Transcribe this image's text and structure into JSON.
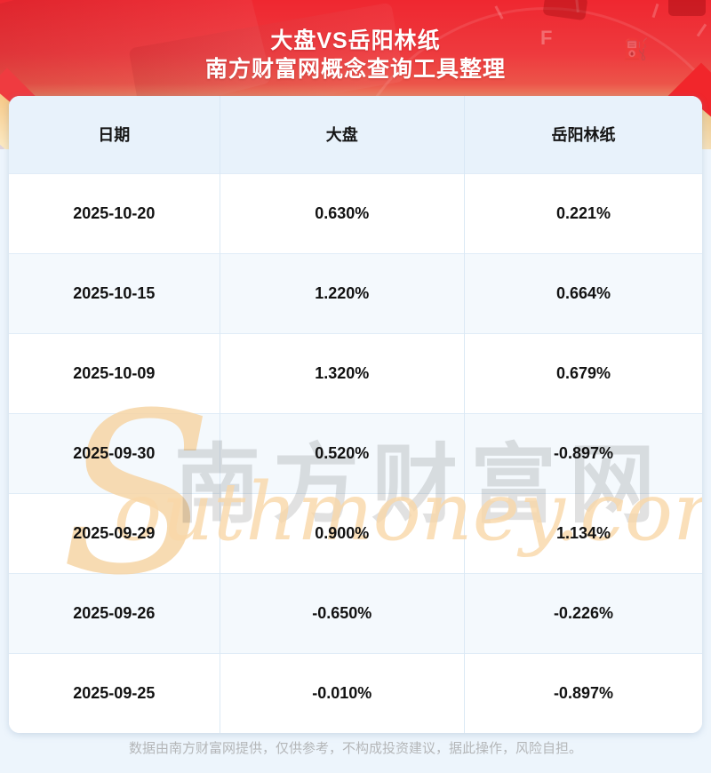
{
  "header": {
    "title_line1": "大盘VS岳阳林纸",
    "title_line2": "南方财富网概念查询工具整理"
  },
  "table": {
    "columns": [
      "日期",
      "大盘",
      "岳阳林纸"
    ],
    "rows": [
      [
        "2025-10-20",
        "0.630%",
        "0.221%"
      ],
      [
        "2025-10-15",
        "1.220%",
        "0.664%"
      ],
      [
        "2025-10-09",
        "1.320%",
        "0.679%"
      ],
      [
        "2025-09-30",
        "0.520%",
        "-0.897%"
      ],
      [
        "2025-09-29",
        "0.900%",
        "1.134%"
      ],
      [
        "2025-09-26",
        "-0.650%",
        "-0.226%"
      ],
      [
        "2025-09-25",
        "-0.010%",
        "-0.897%"
      ]
    ]
  },
  "watermark": {
    "initial": "S",
    "cn_text": "南方财富网",
    "en_text": "outhmoney.com"
  },
  "footer": {
    "disclaimer": "数据由南方财富网提供，仅供参考，不构成投资建议，据此操作，风险自担。"
  },
  "colors": {
    "brand_red": "#ee2b33",
    "banner_fade": "#f9eeda",
    "page_bg": "#edf5fc",
    "table_header_bg": "#e8f2fb",
    "row_bg": "#ffffff",
    "row_alt_bg": "#f4f9fd",
    "watermark_peach": "#f7d9ae",
    "footer_text": "#b4b6b8"
  }
}
